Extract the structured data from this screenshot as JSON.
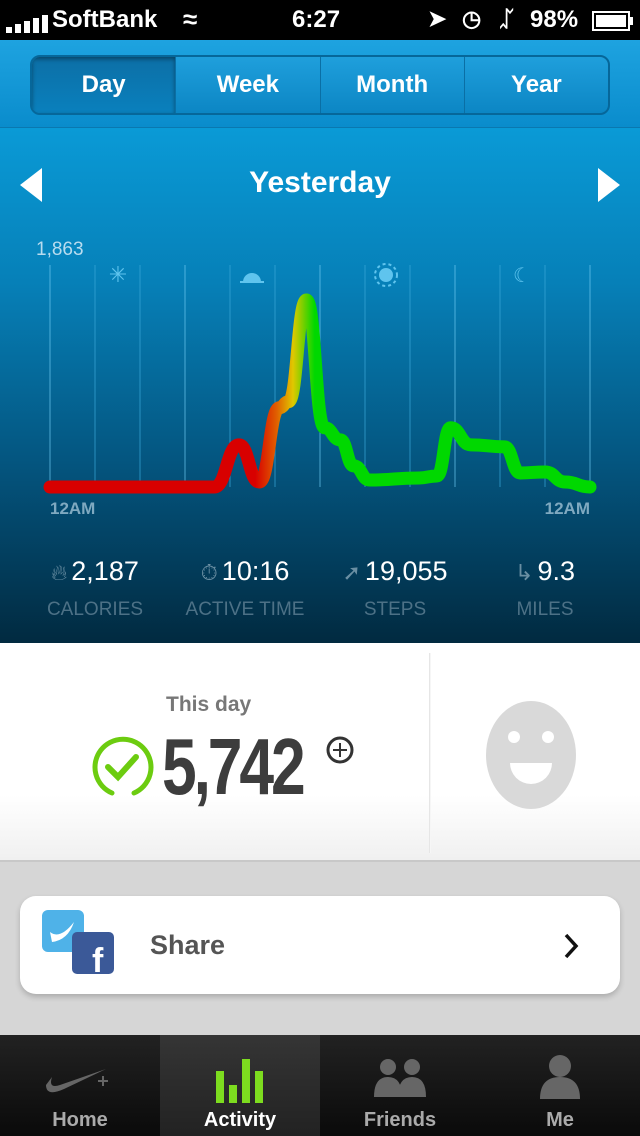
{
  "status_bar": {
    "carrier": "SoftBank",
    "time": "6:27",
    "battery": "98%"
  },
  "segments": [
    "Day",
    "Week",
    "Month",
    "Year"
  ],
  "selected_segment": "Day",
  "date_title": "Yesterday",
  "chart_data": {
    "type": "line",
    "ymax_label": "1,863",
    "ylim": [
      0,
      1863
    ],
    "xlim": [
      0,
      24
    ],
    "x_tick_labels": [
      "12AM",
      "12AM"
    ],
    "time_of_day_icons": [
      "night-star-icon",
      "sunrise-icon",
      "sun-icon",
      "moon-icon"
    ],
    "points": [
      [
        0,
        0
      ],
      [
        7.3,
        0
      ],
      [
        8.4,
        420
      ],
      [
        9.3,
        50
      ],
      [
        10.2,
        790
      ],
      [
        10.6,
        850
      ],
      [
        11.4,
        1863
      ],
      [
        12.2,
        590
      ],
      [
        12.9,
        470
      ],
      [
        13.5,
        210
      ],
      [
        14.2,
        70
      ],
      [
        16.4,
        90
      ],
      [
        17.2,
        110
      ],
      [
        17.8,
        590
      ],
      [
        18.7,
        420
      ],
      [
        20.2,
        400
      ],
      [
        20.9,
        140
      ],
      [
        22,
        150
      ],
      [
        22.9,
        50
      ],
      [
        24,
        0
      ]
    ],
    "colors": {
      "low": "#d80000",
      "mid": "#e0c800",
      "high": "#00d800"
    }
  },
  "stats": [
    {
      "icon": "flame-icon",
      "value": "2,187",
      "label": "CALORIES"
    },
    {
      "icon": "stopwatch-icon",
      "value": "10:16",
      "label": "ACTIVE TIME"
    },
    {
      "icon": "shoe-icon",
      "value": "19,055",
      "label": "STEPS"
    },
    {
      "icon": "road-icon",
      "value": "9.3",
      "label": "MILES"
    }
  ],
  "summary": {
    "label": "This day",
    "fuel": "5,742"
  },
  "share": {
    "label": "Share"
  },
  "tabs": [
    {
      "label": "Home"
    },
    {
      "label": "Activity"
    },
    {
      "label": "Friends"
    },
    {
      "label": "Me"
    }
  ],
  "active_tab": "Activity"
}
